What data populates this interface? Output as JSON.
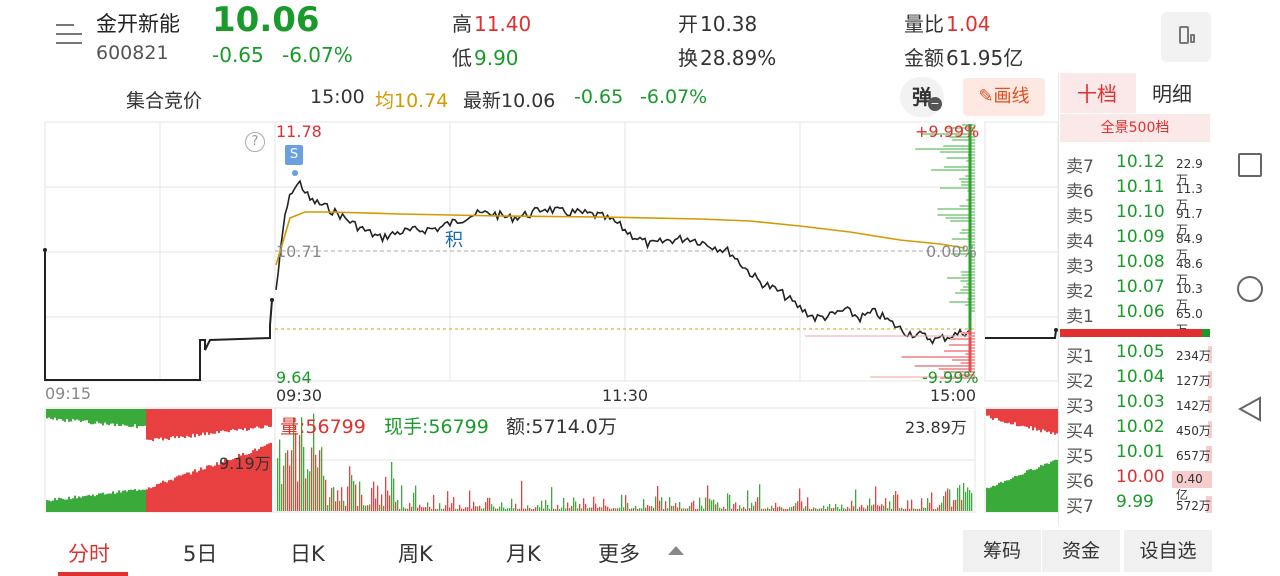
{
  "header": {
    "name": "金开新能",
    "code": "600821",
    "price": "10.06",
    "change": "-0.65",
    "change_pct": "-6.07%",
    "stats": {
      "high_label": "高",
      "high": "11.40",
      "low_label": "低",
      "low": "9.90",
      "open_label": "开",
      "open": "10.38",
      "turnover_label": "换",
      "turnover": "28.89%",
      "vol_ratio_label": "量比",
      "vol_ratio": "1.04",
      "amount_label": "金额",
      "amount": "61.95亿"
    }
  },
  "infobar": {
    "auction": "集合竞价",
    "time": "15:00",
    "avg": "均10.74",
    "latest": "最新10.06",
    "change": "-0.65",
    "change_pct": "-6.07%",
    "popup_label": "弹",
    "draw_label": "画线"
  },
  "right_tabs": {
    "depth": "十档",
    "detail": "明细",
    "full": "全景500档"
  },
  "order_book": {
    "sell": [
      {
        "label": "卖7",
        "price": "10.12",
        "vol": "22.9万",
        "bar": 0
      },
      {
        "label": "卖6",
        "price": "10.11",
        "vol": "11.3万",
        "bar": 0
      },
      {
        "label": "卖5",
        "price": "10.10",
        "vol": "91.7万",
        "bar": 0
      },
      {
        "label": "卖4",
        "price": "10.09",
        "vol": "84.9万",
        "bar": 0
      },
      {
        "label": "卖3",
        "price": "10.08",
        "vol": "48.6万",
        "bar": 0
      },
      {
        "label": "卖2",
        "price": "10.07",
        "vol": "10.3万",
        "bar": 0
      },
      {
        "label": "卖1",
        "price": "10.06",
        "vol": "65.0万",
        "bar": 0
      }
    ],
    "buy": [
      {
        "label": "买1",
        "price": "10.05",
        "vol": "234万",
        "bar": 0.06
      },
      {
        "label": "买2",
        "price": "10.04",
        "vol": "127万",
        "bar": 0.03
      },
      {
        "label": "买3",
        "price": "10.03",
        "vol": "142万",
        "bar": 0.035
      },
      {
        "label": "买4",
        "price": "10.02",
        "vol": "450万",
        "bar": 0.11
      },
      {
        "label": "买5",
        "price": "10.01",
        "vol": "657万",
        "bar": 0.16
      },
      {
        "label": "买6",
        "price": "10.00",
        "vol": "0.40亿",
        "bar": 1.0
      },
      {
        "label": "买7",
        "price": "9.99",
        "vol": "572万",
        "bar": 0.14
      }
    ]
  },
  "chart": {
    "price_top": "11.78",
    "price_mid": "10.71",
    "price_bottom": "9.64",
    "pct_top": "+9.99%",
    "pct_mid": "0.00%",
    "pct_bottom": "-9.99%",
    "time_start": "09:15",
    "time_open": "09:30",
    "time_mid": "11:30",
    "time_close": "15:00",
    "marker_s": "S",
    "marker_ji": "积",
    "help": "?",
    "auction_vol_label": "9.19万",
    "vol_label": "量:56799",
    "hand_label": "现手:56799",
    "amount_label": "额:5714.0万",
    "vol_max": "23.89万"
  },
  "bottom_tabs": [
    "分时",
    "5日",
    "日K",
    "周K",
    "月K",
    "更多"
  ],
  "bottom_buttons": [
    "筹码",
    "资金",
    "设自选"
  ]
}
